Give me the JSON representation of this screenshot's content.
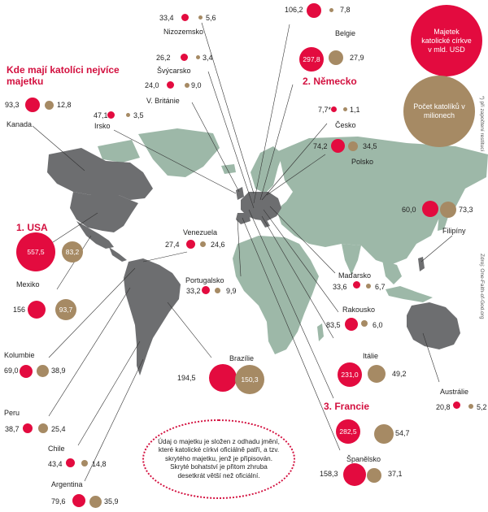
{
  "title": "Kde mají katolíci nejvíce majetku",
  "legend": {
    "wealth": "Majetek katolické církve v mld. USD",
    "catholics": "Počet katolíků v milionech"
  },
  "note": "Údaj o majetku je složen z odhadu jmění, které katolické církvi oficiálně patří, a tzv. skrytého majetku, jenž je připisován. Skryté bohatství je přitom zhruba desetkrát větší než oficiální.",
  "footnote": "*) při započtení restitucí",
  "source": "Zdroj: One-Faith-of-God.org",
  "colors": {
    "wealth": "#e30b3f",
    "catholics": "#a68a64",
    "land_highlight": "#6d6e70",
    "land_other": "#9db8a8"
  },
  "countries": [
    {
      "name": "Nizozemsko",
      "wealth": "33,4",
      "catholics": "5,6"
    },
    {
      "name": "Belgie",
      "wealth": "106,2",
      "catholics": "7,8"
    },
    {
      "name": "Švýcarsko",
      "wealth": "26,2",
      "catholics": "3,4"
    },
    {
      "name": "Německo",
      "rank": "2. Německo",
      "wealth": "297,8",
      "catholics": "27,9"
    },
    {
      "name": "V. Británie",
      "wealth": "24,0",
      "catholics": "9,0"
    },
    {
      "name": "Irsko",
      "wealth": "47,1",
      "catholics": "3,5"
    },
    {
      "name": "Kanada",
      "wealth": "93,3",
      "catholics": "12,8"
    },
    {
      "name": "Česko",
      "wealth": "7,7*",
      "catholics": "1,1"
    },
    {
      "name": "Polsko",
      "wealth": "74,2",
      "catholics": "34,5"
    },
    {
      "name": "Filipíny",
      "wealth": "60,0",
      "catholics": "73,3"
    },
    {
      "name": "USA",
      "rank": "1. USA",
      "wealth": "557,5",
      "catholics": "83,2"
    },
    {
      "name": "Venezuela",
      "wealth": "27,4",
      "catholics": "24,6"
    },
    {
      "name": "Mexiko",
      "wealth": "156",
      "catholics": "93,7"
    },
    {
      "name": "Portugalsko",
      "wealth": "33,2",
      "catholics": "9,9"
    },
    {
      "name": "Maďarsko",
      "wealth": "33,6",
      "catholics": "6,7"
    },
    {
      "name": "Rakousko",
      "wealth": "83,5",
      "catholics": "6,0"
    },
    {
      "name": "Kolumbie",
      "wealth": "69,0",
      "catholics": "38,9"
    },
    {
      "name": "Brazílie",
      "wealth": "194,5",
      "catholics": "150,3"
    },
    {
      "name": "Itálie",
      "wealth": "231,0",
      "catholics": "49,2"
    },
    {
      "name": "Peru",
      "wealth": "38,7",
      "catholics": "25,4"
    },
    {
      "name": "Francie",
      "rank": "3. Francie",
      "wealth": "282,5",
      "catholics": "54,7"
    },
    {
      "name": "Austrálie",
      "wealth": "20,8",
      "catholics": "5,2"
    },
    {
      "name": "Chile",
      "wealth": "43,4",
      "catholics": "14,8"
    },
    {
      "name": "Španělsko",
      "wealth": "158,3",
      "catholics": "37,1"
    },
    {
      "name": "Argentina",
      "wealth": "79,6",
      "catholics": "35,9"
    }
  ]
}
